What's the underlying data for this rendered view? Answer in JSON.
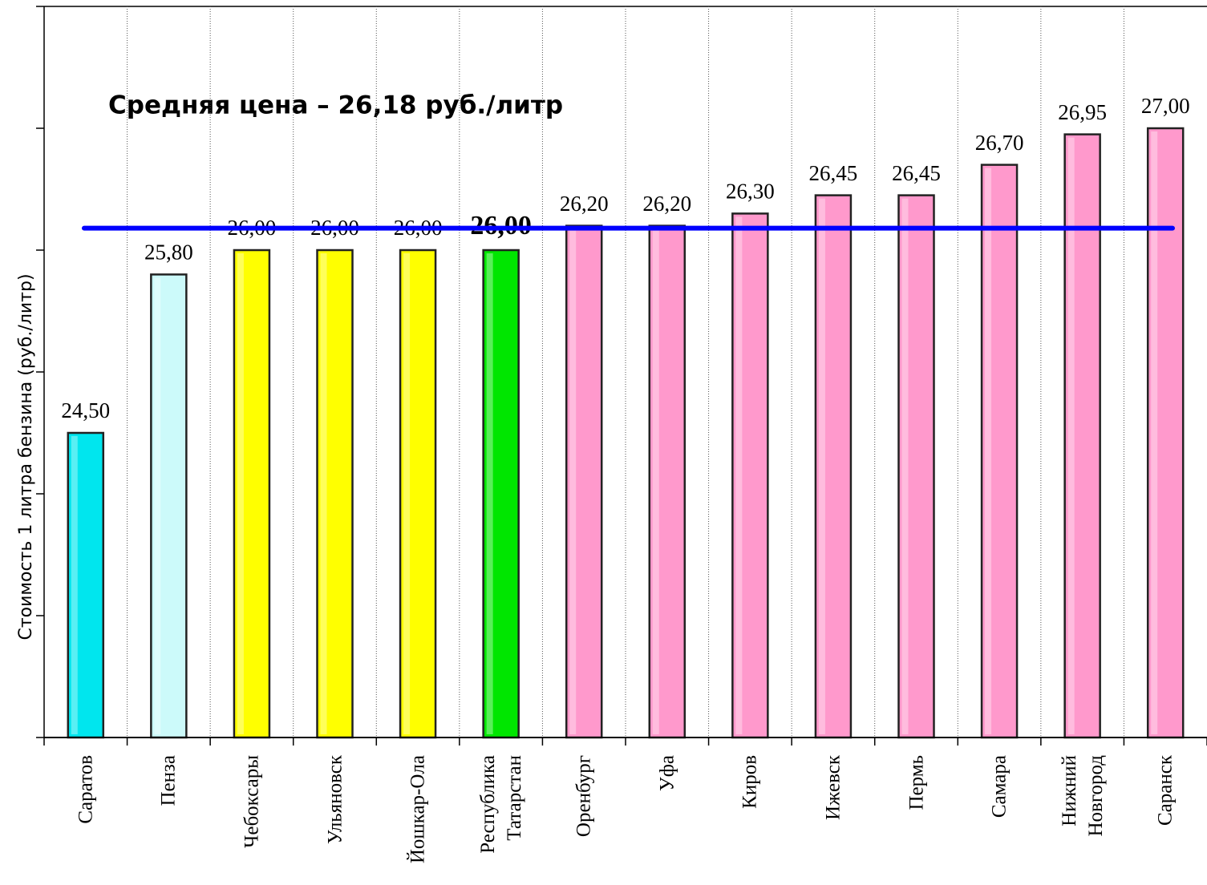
{
  "chart_data": {
    "type": "bar",
    "title": "Средняя цена – 26,18 руб./литр",
    "y_label": "Стоимость 1 литра бензина  (руб./литр)",
    "categories": [
      "Саратов",
      "Пенза",
      "Чебоксары",
      "Ульяновск",
      "Йошкар-Ола",
      "Республика Татарстан",
      "Оренбург",
      "Уфа",
      "Киров",
      "Ижевск",
      "Пермь",
      "Самара",
      "Нижний Новгород",
      "Саранск"
    ],
    "values": [
      24.5,
      25.8,
      26,
      26,
      26,
      26,
      26.2,
      26.2,
      26.3,
      26.45,
      26.45,
      26.7,
      26.95,
      27
    ],
    "value_labels": [
      "24,50",
      "25,80",
      "26,00",
      "26,00",
      "26,00",
      "26,00",
      "26,20",
      "26,20",
      "26,30",
      "26,45",
      "26,45",
      "26,70",
      "26,95",
      "27,00"
    ],
    "colors": [
      "#00e6ee",
      "#ccfafa",
      "#ffff00",
      "#ffff00",
      "#ffff00",
      "#00e600",
      "#ff99cc",
      "#ff99cc",
      "#ff99cc",
      "#ff99cc",
      "#ff99cc",
      "#ff99cc",
      "#ff99cc",
      "#ff99cc"
    ],
    "bold_labels": [
      false,
      false,
      false,
      false,
      false,
      true,
      false,
      false,
      false,
      false,
      false,
      false,
      false,
      false
    ],
    "average": 26.18,
    "average_color": "#0000ff",
    "ylim": [
      22,
      28
    ],
    "yticks": [
      22,
      23,
      24,
      25,
      26,
      27,
      28
    ],
    "grid": true
  }
}
